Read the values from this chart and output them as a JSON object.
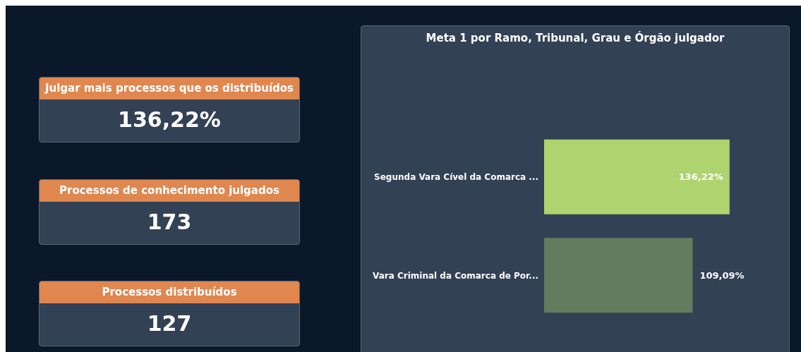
{
  "chart_data": [
    {
      "type": "other",
      "title": "Julgar mais processos que os distribuídos",
      "annotations": [
        "136,22%"
      ]
    },
    {
      "type": "other",
      "title": "Processos de conhecimento julgados",
      "annotations": [
        "173"
      ]
    },
    {
      "type": "other",
      "title": "Processos distribuídos",
      "annotations": [
        "127"
      ]
    },
    {
      "type": "bar",
      "orientation": "horizontal",
      "title": "Meta 1 por Ramo, Tribunal, Grau e Órgão julgador",
      "categories": [
        "Segunda Vara Cível da Comarca ...",
        "Vara Criminal da Comarca de Por..."
      ],
      "values": [
        136.22,
        109.09
      ],
      "colors": [
        "#aed36f",
        "#647c5e"
      ],
      "value_labels": [
        "136,22%",
        "109,09%"
      ],
      "tick_labels": "y"
    }
  ]
}
